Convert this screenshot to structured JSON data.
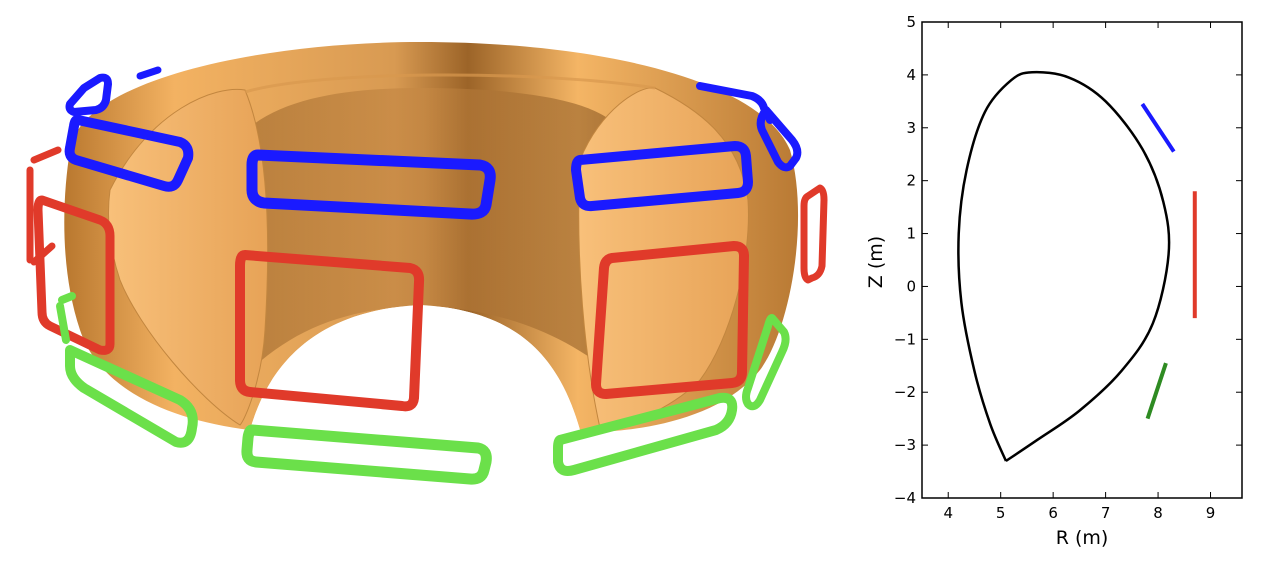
{
  "colors": {
    "torus_light": "#f6b565",
    "torus_mid": "#e2a35a",
    "torus_dark": "#a56a2a",
    "coil_upper": "#1a1aff",
    "coil_mid": "#e03a2a",
    "coil_lower": "#6be04a",
    "boundary": "#000000",
    "coil_lower_2d": "#2e8b22"
  },
  "chart_data": {
    "type": "line",
    "xlabel": "R (m)",
    "ylabel": "Z (m)",
    "xlim": [
      3.5,
      9.6
    ],
    "ylim": [
      -4,
      5
    ],
    "x_ticks": [
      "4",
      "5",
      "6",
      "7",
      "8",
      "9"
    ],
    "y_ticks": [
      "5",
      "4",
      "3",
      "2",
      "1",
      "0",
      "−1",
      "−2",
      "−3",
      "−4"
    ],
    "grid": false,
    "series": [
      {
        "role": "plasma-boundary",
        "color": "#000000",
        "points": [
          [
            5.1,
            -3.3
          ],
          [
            5.7,
            -2.9
          ],
          [
            6.5,
            -2.35
          ],
          [
            7.3,
            -1.6
          ],
          [
            7.9,
            -0.7
          ],
          [
            8.2,
            0.6
          ],
          [
            8.1,
            1.6
          ],
          [
            7.7,
            2.6
          ],
          [
            7.0,
            3.5
          ],
          [
            6.3,
            3.95
          ],
          [
            5.6,
            4.05
          ],
          [
            5.2,
            3.9
          ],
          [
            4.7,
            3.3
          ],
          [
            4.35,
            2.2
          ],
          [
            4.2,
            1.0
          ],
          [
            4.25,
            -0.3
          ],
          [
            4.5,
            -1.6
          ],
          [
            4.8,
            -2.6
          ],
          [
            5.1,
            -3.3
          ]
        ]
      },
      {
        "role": "upper-coil",
        "color": "#1a1aff",
        "points": [
          [
            7.7,
            3.45
          ],
          [
            8.3,
            2.55
          ]
        ]
      },
      {
        "role": "midplane-coil",
        "color": "#e03a2a",
        "points": [
          [
            8.7,
            1.8
          ],
          [
            8.7,
            -0.6
          ]
        ]
      },
      {
        "role": "lower-coil",
        "color": "#2e8b22",
        "points": [
          [
            8.15,
            -1.45
          ],
          [
            7.8,
            -2.5
          ]
        ]
      }
    ]
  }
}
